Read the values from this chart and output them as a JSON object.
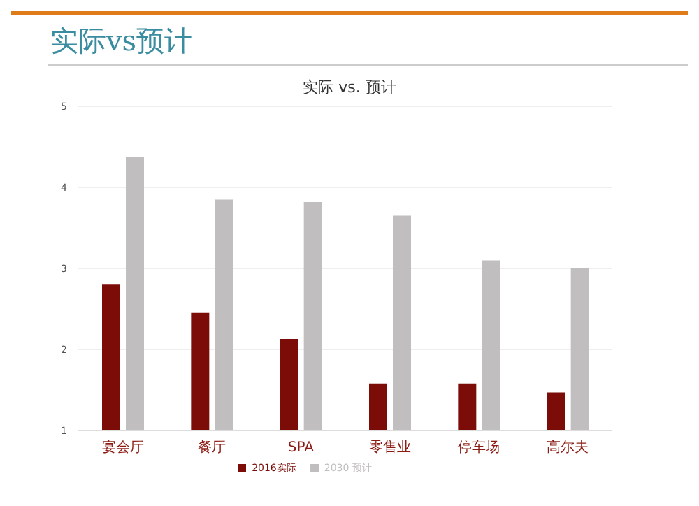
{
  "chart_data": {
    "type": "bar",
    "title": "实际vs预计",
    "subtitle": "实际 vs. 预计",
    "categories": [
      "宴会厅",
      "餐厅",
      "SPA",
      "零售业",
      "停车场",
      "高尔夫"
    ],
    "series": [
      {
        "name": "2016实际",
        "color": "#7b0c07",
        "values": [
          2.8,
          2.45,
          2.13,
          1.58,
          1.58,
          1.47
        ]
      },
      {
        "name": "2030 预计",
        "color": "#c0bebe",
        "values": [
          4.37,
          3.85,
          3.82,
          3.65,
          3.1,
          3.0
        ]
      }
    ],
    "ylim": [
      1,
      5
    ],
    "yticks": [
      1,
      2,
      3,
      4,
      5
    ],
    "grid": "y",
    "legend": "bottom"
  }
}
